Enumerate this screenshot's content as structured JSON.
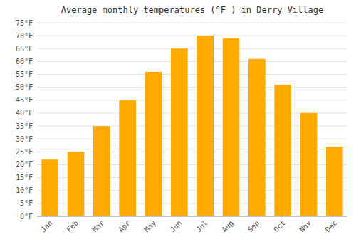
{
  "chart_data": {
    "type": "bar",
    "title": "Average monthly temperatures (°F ) in Derry Village",
    "categories": [
      "Jan",
      "Feb",
      "Mar",
      "Apr",
      "May",
      "Jun",
      "Jul",
      "Aug",
      "Sep",
      "Oct",
      "Nov",
      "Dec"
    ],
    "values": [
      22,
      25,
      35,
      45,
      56,
      65,
      70,
      69,
      61,
      51,
      40,
      27
    ],
    "color": "#FFAA00",
    "ylim": [
      0,
      75
    ],
    "yticks": [
      {
        "value": 0,
        "label": "0°F"
      },
      {
        "value": 5,
        "label": "5°F"
      },
      {
        "value": 10,
        "label": "10°F"
      },
      {
        "value": 15,
        "label": "15°F"
      },
      {
        "value": 20,
        "label": "20°F"
      },
      {
        "value": 25,
        "label": "25°F"
      },
      {
        "value": 30,
        "label": "30°F"
      },
      {
        "value": 35,
        "label": "35°F"
      },
      {
        "value": 40,
        "label": "40°F"
      },
      {
        "value": 45,
        "label": "45°F"
      },
      {
        "value": 50,
        "label": "50°F"
      },
      {
        "value": 55,
        "label": "55°F"
      },
      {
        "value": 60,
        "label": "60°F"
      },
      {
        "value": 65,
        "label": "65°F"
      },
      {
        "value": 70,
        "label": "70°F"
      },
      {
        "value": 75,
        "label": "75°F"
      }
    ],
    "grid": true
  }
}
